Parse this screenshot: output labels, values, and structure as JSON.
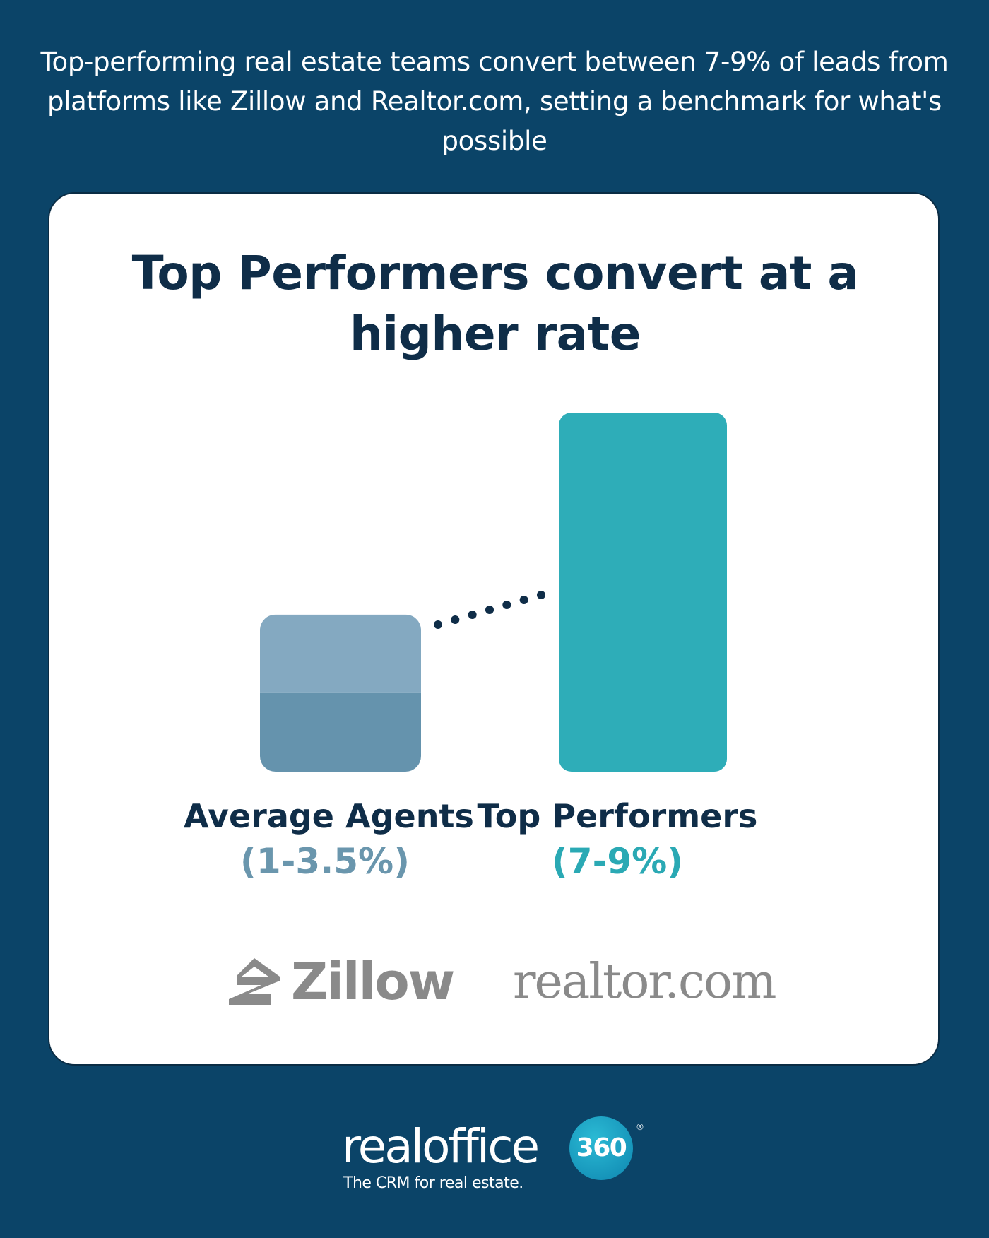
{
  "headline": "Top-performing real estate teams convert between 7-9% of leads from platforms like Zillow and Realtor.com, setting a benchmark for what's possible",
  "chart_data": {
    "type": "bar",
    "title": "Top Performers convert at a higher rate",
    "categories": [
      "Average Agents",
      "Top Performers"
    ],
    "category_ranges": [
      "(1-3.5%)",
      "(7-9%)"
    ],
    "ranges": [
      [
        1,
        3.5
      ],
      [
        7,
        9
      ]
    ],
    "values": [
      3.5,
      8
    ],
    "ylim": [
      0,
      8
    ],
    "grid": false,
    "legend": "none",
    "colors": {
      "average": "#6d9ab2",
      "average_light": "#84a9c1",
      "average_dark": "#6593ad",
      "top": "#2eadb8",
      "average_label": "#6a96ad",
      "top_label": "#2aa9b4",
      "title": "#0f2d48"
    }
  },
  "logos": {
    "zillow": "Zillow",
    "realtor": "realtor.com"
  },
  "brand": {
    "name": "realoffice",
    "badge": "360",
    "registered": "®",
    "tagline": "The CRM for real estate."
  },
  "colors": {
    "background": "#0b4468",
    "card": "#ffffff",
    "logo_gray": "#8a8a8a"
  },
  "icons": {
    "zillow_mark": "zillow-house-icon",
    "connector": "dotted-connector"
  }
}
